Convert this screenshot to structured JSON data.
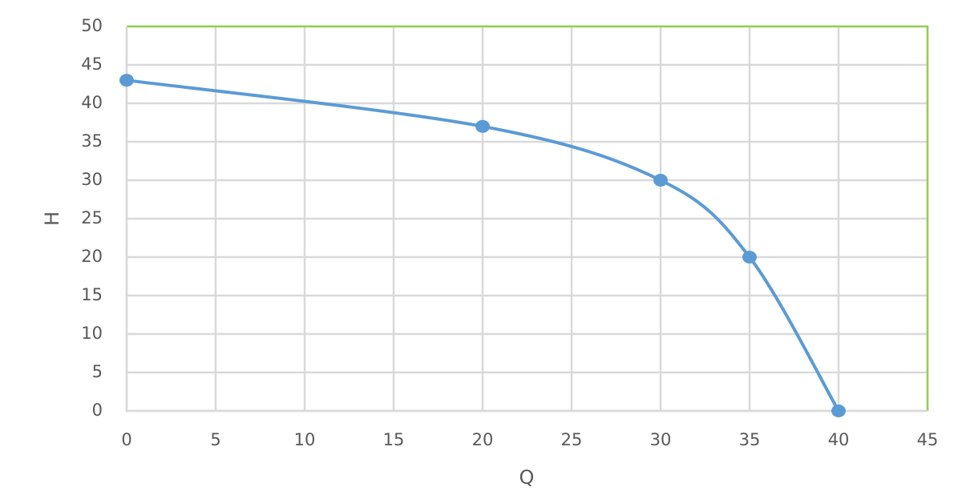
{
  "chart_data": {
    "type": "scatter",
    "smooth": true,
    "x_label": "Q",
    "y_label": "H",
    "series": [
      {
        "name": "H",
        "color": "#5b9bd5",
        "x": [
          0,
          20,
          30,
          35,
          40
        ],
        "values": [
          43,
          37,
          30,
          20,
          0
        ]
      }
    ],
    "xlim": [
      0,
      45
    ],
    "xticks": [
      0,
      5,
      10,
      15,
      20,
      25,
      30,
      35,
      40,
      45
    ],
    "ylim": [
      0,
      50
    ],
    "yticks": [
      0,
      5,
      10,
      15,
      20,
      25,
      30,
      35,
      40,
      45,
      50
    ],
    "grid": true,
    "border_color": "#92d050"
  }
}
